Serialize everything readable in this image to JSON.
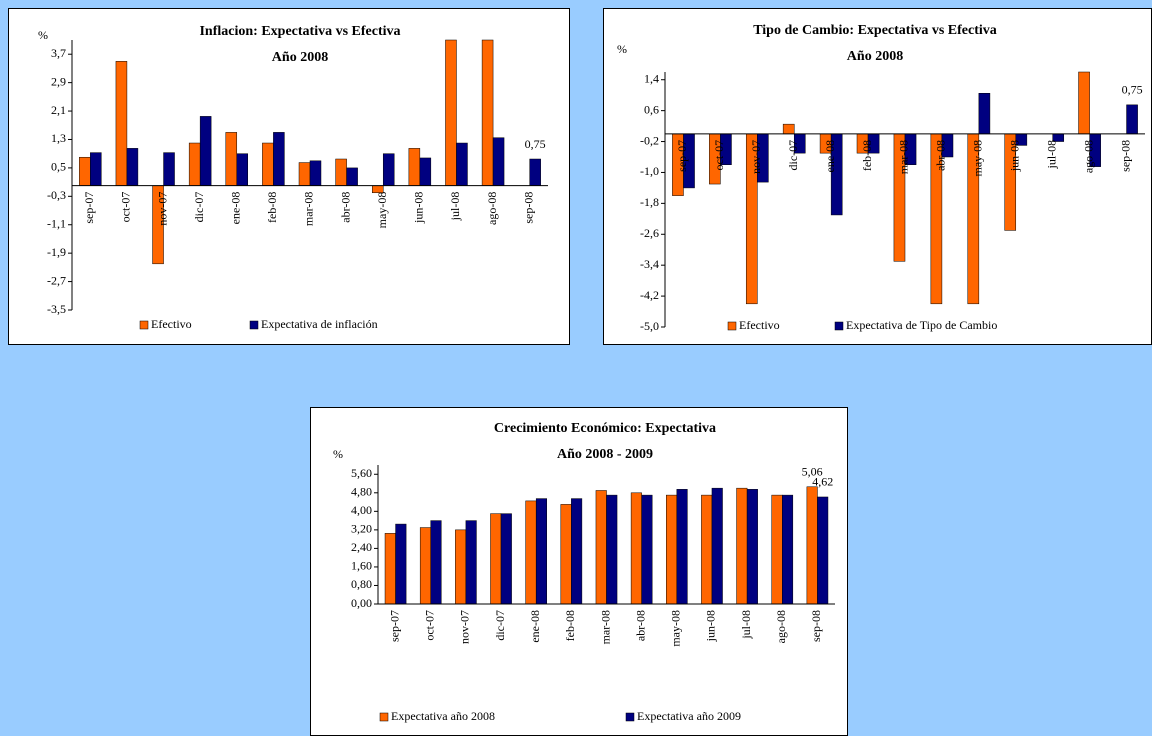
{
  "chart_data": [
    {
      "type": "bar",
      "title": "Inflacion: Expectativa vs Efectiva",
      "subtitle": "Año 2008",
      "y_label": "%",
      "categories": [
        "sep-07",
        "oct-07",
        "nov-07",
        "dic-07",
        "ene-08",
        "feb-08",
        "mar-08",
        "abr-08",
        "may-08",
        "jun-08",
        "jul-08",
        "ago-08",
        "sep-08"
      ],
      "series": [
        {
          "name": "Efectivo",
          "color": "#ff6600",
          "values": [
            0.8,
            3.5,
            -2.2,
            1.2,
            1.5,
            1.2,
            0.65,
            0.75,
            -0.2,
            1.05,
            4.1,
            4.1,
            null
          ]
        },
        {
          "name": "Expectativa de inflación",
          "color": "#000080",
          "values": [
            0.93,
            1.05,
            0.93,
            1.95,
            0.9,
            1.5,
            0.7,
            0.5,
            0.9,
            0.78,
            1.2,
            1.35,
            0.75
          ],
          "value_labels": [
            null,
            null,
            null,
            null,
            null,
            null,
            null,
            null,
            null,
            null,
            null,
            null,
            "0,75"
          ]
        }
      ],
      "ylim": [
        -3.5,
        4.1
      ],
      "yticks": [
        {
          "value": 3.7,
          "label": "3,7"
        },
        {
          "value": 2.9,
          "label": "2,9"
        },
        {
          "value": 2.1,
          "label": "2,1"
        },
        {
          "value": 1.3,
          "label": "1,3"
        },
        {
          "value": 0.5,
          "label": "0,5"
        },
        {
          "value": -0.3,
          "label": "-0,3"
        },
        {
          "value": -1.1,
          "label": "-1,1"
        },
        {
          "value": -1.9,
          "label": "-1,9"
        },
        {
          "value": -2.7,
          "label": "-2,7"
        },
        {
          "value": -3.5,
          "label": "-3,5"
        }
      ]
    },
    {
      "type": "bar",
      "title": "Tipo de Cambio: Expectativa vs Efectiva",
      "subtitle": "Año 2008",
      "y_label": "%",
      "categories": [
        "sep-07",
        "oct-07",
        "nov-07",
        "dic-07",
        "ene-08",
        "feb-08",
        "mar-08",
        "abr-08",
        "may-08",
        "jun-08",
        "jul-08",
        "ago-08",
        "sep-08"
      ],
      "series": [
        {
          "name": "Efectivo",
          "color": "#ff6600",
          "values": [
            -1.6,
            -1.3,
            -4.4,
            0.25,
            -0.5,
            -0.5,
            -3.3,
            -4.4,
            -4.4,
            -2.5,
            null,
            1.6,
            null
          ]
        },
        {
          "name": "Expectativa de Tipo de Cambio",
          "color": "#000080",
          "values": [
            -1.4,
            -0.8,
            -1.25,
            -0.5,
            -2.1,
            -0.5,
            -0.8,
            -0.6,
            1.05,
            -0.3,
            -0.2,
            -0.85,
            0.75
          ],
          "value_labels": [
            null,
            null,
            null,
            null,
            null,
            null,
            null,
            null,
            null,
            null,
            null,
            null,
            "0,75"
          ]
        }
      ],
      "ylim": [
        -5.0,
        1.6
      ],
      "yticks": [
        {
          "value": 1.4,
          "label": "1,4"
        },
        {
          "value": 0.6,
          "label": "0,6"
        },
        {
          "value": -0.2,
          "label": "-0,2"
        },
        {
          "value": -1.0,
          "label": "-1,0"
        },
        {
          "value": -1.8,
          "label": "-1,8"
        },
        {
          "value": -2.6,
          "label": "-2,6"
        },
        {
          "value": -3.4,
          "label": "-3,4"
        },
        {
          "value": -4.2,
          "label": "-4,2"
        },
        {
          "value": -5.0,
          "label": "-5,0"
        }
      ]
    },
    {
      "type": "bar",
      "title": "Crecimiento Económico: Expectativa",
      "subtitle": "Año 2008 - 2009",
      "y_label": "%",
      "categories": [
        "sep-07",
        "oct-07",
        "nov-07",
        "dic-07",
        "ene-08",
        "feb-08",
        "mar-08",
        "abr-08",
        "may-08",
        "jun-08",
        "jul-08",
        "ago-08",
        "sep-08"
      ],
      "series": [
        {
          "name": "Expectativa año 2008",
          "color": "#ff6600",
          "values": [
            3.05,
            3.3,
            3.2,
            3.9,
            4.45,
            4.3,
            4.9,
            4.8,
            4.7,
            4.7,
            5.0,
            4.7,
            5.06
          ],
          "value_labels": [
            null,
            null,
            null,
            null,
            null,
            null,
            null,
            null,
            null,
            null,
            null,
            null,
            "5,06"
          ]
        },
        {
          "name": "Expectativa año 2009",
          "color": "#000080",
          "values": [
            3.45,
            3.6,
            3.6,
            3.9,
            4.55,
            4.55,
            4.7,
            4.7,
            4.95,
            5.0,
            4.95,
            4.7,
            4.62
          ],
          "value_labels": [
            null,
            null,
            null,
            null,
            null,
            null,
            null,
            null,
            null,
            null,
            null,
            null,
            "4,62"
          ]
        }
      ],
      "ylim": [
        0,
        6.0
      ],
      "yticks": [
        {
          "value": 5.6,
          "label": "5,60"
        },
        {
          "value": 4.8,
          "label": "4,80"
        },
        {
          "value": 4.0,
          "label": "4,00"
        },
        {
          "value": 3.2,
          "label": "3,20"
        },
        {
          "value": 2.4,
          "label": "2,40"
        },
        {
          "value": 1.6,
          "label": "1,60"
        },
        {
          "value": 0.8,
          "label": "0,80"
        },
        {
          "value": 0.0,
          "label": "0,00"
        }
      ]
    }
  ]
}
